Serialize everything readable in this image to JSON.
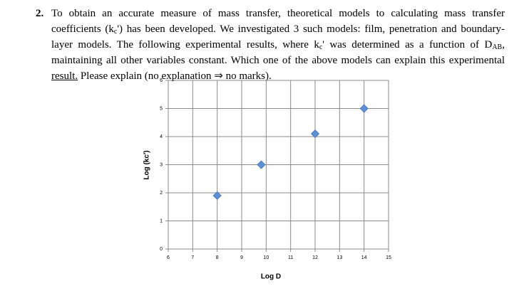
{
  "question": {
    "number": "2.",
    "parts": [
      "To obtain an accurate measure of mass transfer, theoretical models to calculating mass transfer coefficients (k",
      "c",
      "') has been developed. We investigated 3 such models: film, penetration and boundary-layer models. The following experimental results, where k",
      "c",
      "' was determined as a function of D",
      "AB",
      ", maintaining all other variables constant.  Which one of the above models can explain this experimental ",
      "result.",
      " Please explain (no explanation ⇒ no marks)."
    ]
  },
  "chart_data": {
    "type": "scatter",
    "x_label": "Log D",
    "y_label": "Log (kc')",
    "x": [
      8,
      9.8,
      12,
      14
    ],
    "values": [
      1.9,
      3,
      4.1,
      5
    ],
    "color": "#5b8fd6",
    "xlim": [
      6,
      15
    ],
    "xticks": [
      6,
      7,
      8,
      9,
      10,
      11,
      12,
      13,
      14,
      15
    ],
    "ylim": [
      0,
      6
    ],
    "yticks": [
      0,
      1,
      2,
      3,
      4,
      5,
      6
    ],
    "grid": true
  }
}
